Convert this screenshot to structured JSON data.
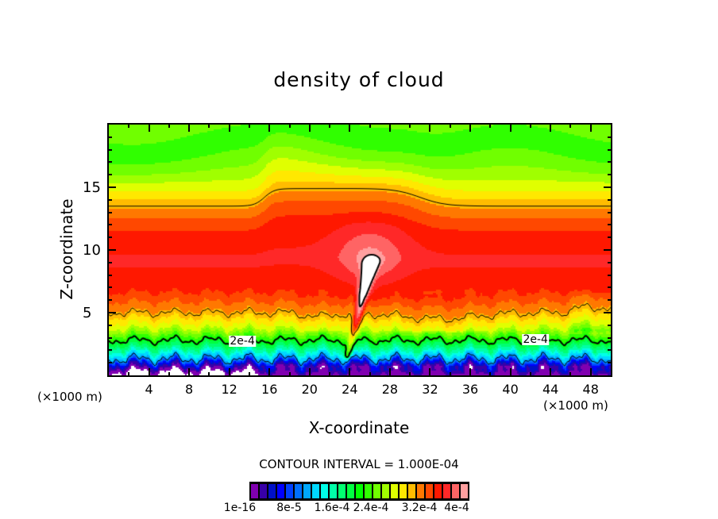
{
  "chart_data": {
    "type": "heatmap",
    "title": "density of cloud",
    "xlabel": "X-coordinate",
    "ylabel": "Z-coordinate",
    "x_unit_label": "(×1000 m)",
    "y_unit_label": "(×1000 m)",
    "xlim": [
      0,
      50
    ],
    "ylim": [
      0,
      20
    ],
    "x_ticks": [
      4,
      8,
      12,
      16,
      20,
      24,
      28,
      32,
      36,
      40,
      44,
      48
    ],
    "y_ticks": [
      5,
      10,
      15
    ],
    "contour_interval_text": "CONTOUR INTERVAL = 1.000E-04",
    "contour_levels_e4": [
      1,
      2,
      3,
      4
    ],
    "contour_labels": [
      {
        "text": "2e-4",
        "x": 13.3,
        "z": 2.75
      },
      {
        "text": "2e-4",
        "x": 42.5,
        "z": 2.85
      }
    ],
    "colorbar": {
      "min_e4": 0,
      "max_e4": 4,
      "colors": [
        "#8000b0",
        "#3800a8",
        "#0010c8",
        "#0000ff",
        "#0040ff",
        "#0070ff",
        "#00a8ff",
        "#00d8ff",
        "#00ffe8",
        "#00ffa8",
        "#00ff70",
        "#00ff40",
        "#00ff00",
        "#30ff00",
        "#70ff00",
        "#a0ff00",
        "#e0ff00",
        "#ffe800",
        "#ffbc00",
        "#ff7800",
        "#ff4800",
        "#ff1800",
        "#ff2828",
        "#ff6464",
        "#ffa0a0"
      ],
      "labels": [
        "1e-16",
        "8e-5",
        "1.6e-4",
        "2.4e-4",
        "3.2e-4",
        "4e-4"
      ]
    },
    "vertical_profile_e4": [
      [
        0,
        -0.2
      ],
      [
        0.4,
        0.05
      ],
      [
        0.8,
        0.3
      ],
      [
        1.3,
        1.0
      ],
      [
        2,
        1.5
      ],
      [
        2.8,
        2.0
      ],
      [
        3.8,
        2.6
      ],
      [
        5,
        3.0
      ],
      [
        6.5,
        3.35
      ],
      [
        9,
        3.55
      ],
      [
        11,
        3.45
      ],
      [
        12.5,
        3.2
      ],
      [
        13.5,
        3.0
      ],
      [
        15,
        2.65
      ],
      [
        16.5,
        2.35
      ],
      [
        18,
        2.15
      ],
      [
        20,
        2.3
      ]
    ],
    "plume": {
      "base": [
        23.8,
        1.5
      ],
      "top": [
        26.2,
        9.3
      ],
      "amplitude_e4": 0.9,
      "max_region": "x 25.3–26.6, z 5.2–9.8 (> 4e-4)"
    }
  }
}
